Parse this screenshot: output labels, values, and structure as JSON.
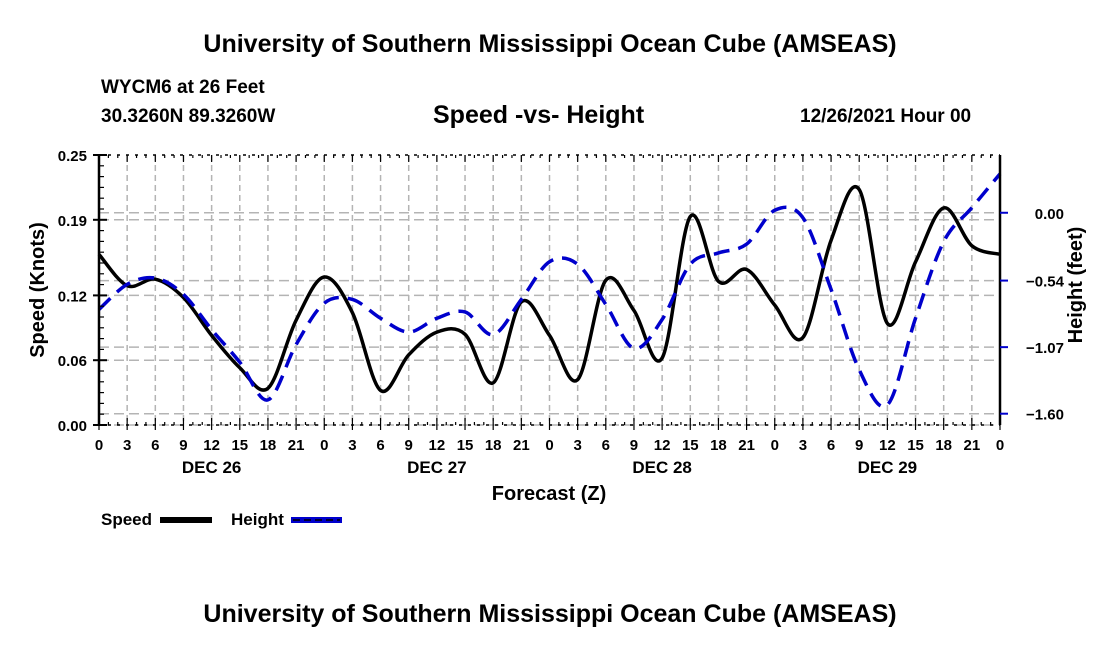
{
  "header": {
    "main_title": "University of Southern Mississippi Ocean Cube (AMSEAS)",
    "station": "WYCM6 at 26 Feet",
    "coordinates": "30.3260N  89.3260W",
    "subtitle": "Speed -vs- Height",
    "datestamp": "12/26/2021 Hour 00"
  },
  "footer": {
    "title": "University of Southern Mississippi Ocean Cube (AMSEAS)"
  },
  "colors": {
    "speed": "#000000",
    "height": "#0000cc",
    "grid": "#b4b4b4"
  },
  "chart_data": {
    "type": "line",
    "title": "Speed -vs- Height",
    "xlabel": "Forecast (Z)",
    "ylabel": "Speed (Knots)",
    "y2label": "Height (feet)",
    "grid": true,
    "legend_position": "bottom-left",
    "x_hours": [
      0,
      3,
      6,
      9,
      12,
      15,
      18,
      21,
      24,
      27,
      30,
      33,
      36,
      39,
      42,
      45,
      48,
      51,
      54,
      57,
      60,
      63,
      66,
      69,
      72,
      75,
      78,
      81,
      84,
      87,
      90,
      93,
      96
    ],
    "x_tick_labels": [
      "0",
      "3",
      "6",
      "9",
      "12",
      "15",
      "18",
      "21",
      "0",
      "3",
      "6",
      "9",
      "12",
      "15",
      "18",
      "21",
      "0",
      "3",
      "6",
      "9",
      "12",
      "15",
      "18",
      "21",
      "0",
      "3",
      "6",
      "9",
      "12",
      "15",
      "18",
      "21",
      "0"
    ],
    "day_labels": [
      {
        "label": "DEC 26",
        "center_hour": 12
      },
      {
        "label": "DEC 27",
        "center_hour": 36
      },
      {
        "label": "DEC 28",
        "center_hour": 60
      },
      {
        "label": "DEC 29",
        "center_hour": 84
      }
    ],
    "xlim": [
      0,
      96
    ],
    "y_left": {
      "ticks": [
        0.0,
        0.06,
        0.12,
        0.19,
        0.25
      ],
      "tick_labels": [
        "0.00",
        "0.06",
        "0.12",
        "0.19",
        "0.25"
      ],
      "ylim": [
        0.0,
        0.25
      ]
    },
    "y_right": {
      "ticks": [
        0.0,
        -0.54,
        -1.07,
        -1.6
      ],
      "tick_labels": [
        "0.00",
        "−0.54",
        "−1.07",
        "−1.60"
      ],
      "ylim": [
        -1.69,
        0.46
      ]
    },
    "series": [
      {
        "name": "Speed",
        "axis": "left",
        "style": "solid",
        "values": [
          0.158,
          0.129,
          0.135,
          0.118,
          0.083,
          0.053,
          0.034,
          0.097,
          0.137,
          0.104,
          0.032,
          0.065,
          0.086,
          0.084,
          0.039,
          0.114,
          0.083,
          0.042,
          0.134,
          0.106,
          0.062,
          0.193,
          0.133,
          0.144,
          0.111,
          0.081,
          0.171,
          0.218,
          0.094,
          0.151,
          0.201,
          0.166,
          0.158
        ]
      },
      {
        "name": "Height",
        "axis": "right",
        "style": "dashed",
        "values": [
          -0.77,
          -0.57,
          -0.52,
          -0.65,
          -0.93,
          -1.19,
          -1.49,
          -1.05,
          -0.72,
          -0.69,
          -0.84,
          -0.95,
          -0.84,
          -0.79,
          -0.97,
          -0.69,
          -0.39,
          -0.41,
          -0.73,
          -1.08,
          -0.85,
          -0.41,
          -0.32,
          -0.25,
          0.02,
          -0.04,
          -0.61,
          -1.25,
          -1.53,
          -0.84,
          -0.23,
          0.04,
          0.31
        ]
      }
    ]
  },
  "legend": {
    "speed_label": "Speed",
    "height_label": "Height"
  }
}
